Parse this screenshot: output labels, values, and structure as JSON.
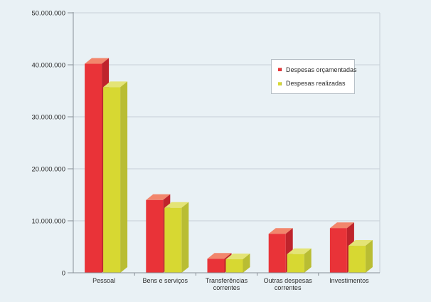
{
  "chart_data": {
    "type": "bar",
    "style": "3d-grouped-columns",
    "title": "",
    "xlabel": "",
    "ylabel": "",
    "categories": [
      "Pessoal",
      "Bens e serviços",
      "Transferências\ncorrentes",
      "Outras despesas\ncorrentes",
      "Investimentos"
    ],
    "series": [
      {
        "name": "Despesas orçamentadas",
        "values": [
          40200000,
          14000000,
          2700000,
          7500000,
          8600000
        ],
        "color_front": "#e93338",
        "color_top": "#f2866c",
        "color_side": "#bf242c"
      },
      {
        "name": "Despesas realizadas",
        "values": [
          35700000,
          12500000,
          2600000,
          3600000,
          5200000
        ],
        "color_front": "#d7d832",
        "color_top": "#e4e476",
        "color_side": "#b9bd33"
      }
    ],
    "ylim": [
      0,
      50000000
    ],
    "y_tick_labels": [
      "0",
      "10.000.000",
      "20.000.000",
      "30.000.000",
      "40.000.000",
      "50.000.000"
    ],
    "grid": true,
    "legend_position": "inside-upper-right"
  },
  "colors": {
    "background": "#e9f1f5",
    "gridline": "#c6cfd6",
    "axis": "#878f96",
    "text": "#2c2c2c",
    "legend_background": "#ffffff",
    "legend_border": "#b7c0c7"
  }
}
